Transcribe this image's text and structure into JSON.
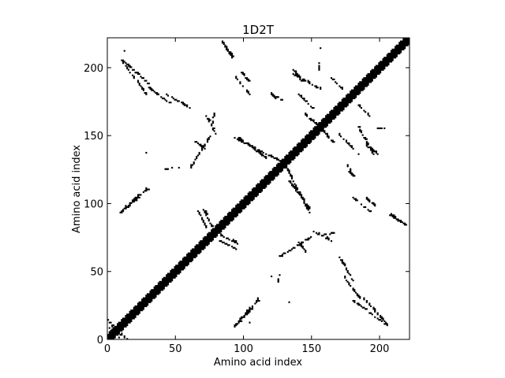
{
  "chart_data": {
    "type": "heatmap",
    "title": "1D2T",
    "xlabel": "Amino acid index",
    "ylabel": "Amino acid index",
    "xlim": [
      0,
      222
    ],
    "ylim": [
      0,
      222
    ],
    "x_ticks": [
      0,
      50,
      100,
      150,
      200
    ],
    "y_ticks": [
      0,
      50,
      100,
      150,
      200
    ],
    "x_tick_labels": [
      "0",
      "50",
      "100",
      "150",
      "200"
    ],
    "y_tick_labels": [
      "0",
      "50",
      "100",
      "150",
      "200"
    ],
    "grid": false,
    "cell_color": "#000000",
    "background_color": "#ffffff",
    "diagonal": {
      "from": 0,
      "to": 222,
      "half_width": 4
    },
    "contact_bands": [
      {
        "x": [
          12,
          29
        ],
        "y": [
          204,
          188
        ]
      },
      {
        "x": [
          30,
          47
        ],
        "y": [
          185,
          172
        ]
      },
      {
        "x": [
          72,
          79
        ],
        "y": [
          165,
          150
        ]
      },
      {
        "x": [
          64,
          71
        ],
        "y": [
          145,
          140
        ]
      },
      {
        "x": [
          86,
          91
        ],
        "y": [
          215,
          208
        ]
      },
      {
        "x": [
          98,
          103
        ],
        "y": [
          196,
          190
        ]
      },
      {
        "x": [
          93,
          128
        ],
        "y": [
          148,
          130
        ]
      },
      {
        "x": [
          136,
          142
        ],
        "y": [
          198,
          190
        ]
      },
      {
        "x": [
          140,
          150
        ],
        "y": [
          180,
          170
        ]
      },
      {
        "x": [
          119,
          128
        ],
        "y": [
          180,
          176
        ]
      },
      {
        "x": [
          156,
          165
        ],
        "y": [
          155,
          145
        ]
      },
      {
        "x": [
          164,
          172
        ],
        "y": [
          192,
          184
        ]
      },
      {
        "x": [
          183,
          195
        ],
        "y": [
          157,
          136
        ]
      },
      {
        "x": [
          198,
          204
        ],
        "y": [
          155,
          155
        ]
      },
      {
        "x": [
          176,
          181
        ],
        "y": [
          125,
          118
        ]
      },
      {
        "x": [
          133,
          148
        ],
        "y": [
          116,
          96
        ]
      },
      {
        "x": [
          180,
          192
        ],
        "y": [
          104,
          94
        ]
      },
      {
        "x": [
          206,
          218
        ],
        "y": [
          92,
          84
        ]
      },
      {
        "x": [
          9,
          29
        ],
        "y": [
          93,
          110
        ]
      },
      {
        "x": [
          42,
          47
        ],
        "y": [
          125,
          126
        ]
      },
      {
        "x": [
          70,
          77
        ],
        "y": [
          95,
          82
        ]
      },
      {
        "x": [
          82,
          94
        ],
        "y": [
          72,
          66
        ]
      },
      {
        "x": [
          92,
          110
        ],
        "y": [
          8,
          28
        ]
      },
      {
        "x": [
          125,
          136
        ],
        "y": [
          60,
          67
        ]
      },
      {
        "x": [
          138,
          150
        ],
        "y": [
          68,
          76
        ]
      },
      {
        "x": [
          152,
          166
        ],
        "y": [
          75,
          78
        ]
      },
      {
        "x": [
          170,
          180
        ],
        "y": [
          60,
          43
        ]
      },
      {
        "x": [
          180,
          205
        ],
        "y": [
          28,
          10
        ]
      },
      {
        "x": [
          0,
          9
        ],
        "y": [
          14,
          0
        ]
      }
    ],
    "isolated_contacts": [
      [
        12,
        212
      ],
      [
        28,
        137
      ],
      [
        133,
        27
      ],
      [
        156,
        214
      ],
      [
        184,
        136
      ],
      [
        120,
        46
      ],
      [
        104,
        12
      ],
      [
        52,
        126
      ]
    ]
  }
}
